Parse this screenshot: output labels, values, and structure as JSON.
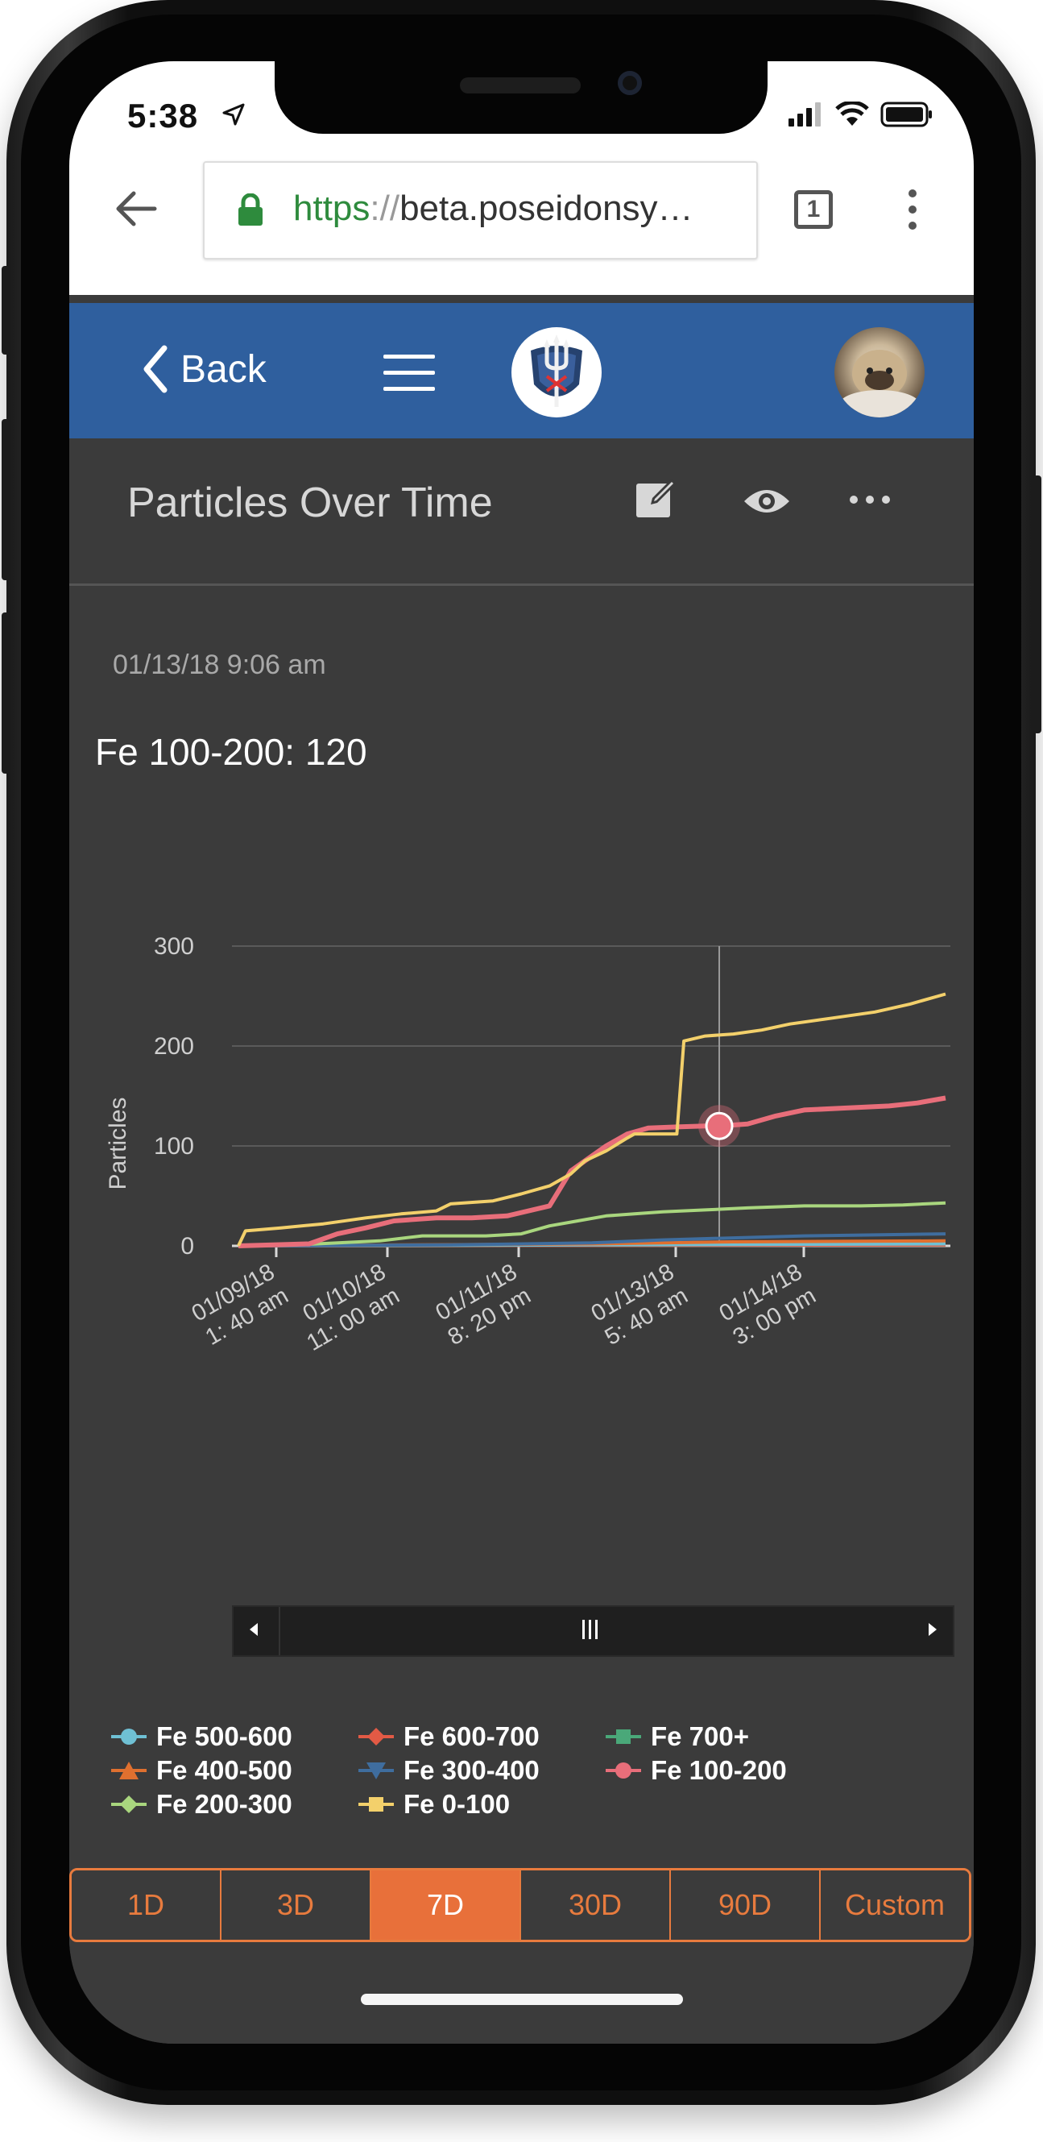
{
  "status": {
    "time": "5:38"
  },
  "browser": {
    "url_scheme": "https",
    "url_sep": "://",
    "url_rest": "beta.poseidonsy…",
    "tab_count": "1"
  },
  "appbar": {
    "back_label": "Back"
  },
  "page": {
    "title": "Particles Over Time",
    "timestamp": "01/13/18 9:06 am",
    "readout": "Fe 100-200: 120"
  },
  "chart_data": {
    "type": "line",
    "ylabel": "Particles",
    "ylim": [
      0,
      300
    ],
    "yticks": [
      "0",
      "100",
      "200",
      "300"
    ],
    "xticks": [
      {
        "l1": "01/09/18",
        "l2": "1: 40 am"
      },
      {
        "l1": "01/10/18",
        "l2": "11: 00 am"
      },
      {
        "l1": "01/11/18",
        "l2": "8: 20 pm"
      },
      {
        "l1": "01/13/18",
        "l2": "5: 40 am"
      },
      {
        "l1": "01/14/18",
        "l2": "3: 00 pm"
      }
    ],
    "xrange": [
      0,
      100
    ],
    "crosshair_x": 68,
    "highlight": {
      "series": "Fe 100-200",
      "x": 68,
      "y": 120
    },
    "series": [
      {
        "name": "Fe 0-100",
        "color": "#f3d06b",
        "points": [
          [
            0,
            0
          ],
          [
            1,
            15
          ],
          [
            6,
            18
          ],
          [
            12,
            22
          ],
          [
            18,
            28
          ],
          [
            23,
            32
          ],
          [
            28,
            35
          ],
          [
            30,
            42
          ],
          [
            36,
            45
          ],
          [
            40,
            52
          ],
          [
            44,
            60
          ],
          [
            47,
            72
          ],
          [
            49,
            85
          ],
          [
            52,
            95
          ],
          [
            55,
            108
          ],
          [
            56,
            112
          ],
          [
            58,
            112
          ],
          [
            62,
            112
          ],
          [
            63,
            205
          ],
          [
            66,
            210
          ],
          [
            70,
            212
          ],
          [
            74,
            216
          ],
          [
            78,
            222
          ],
          [
            84,
            228
          ],
          [
            90,
            234
          ],
          [
            95,
            242
          ],
          [
            100,
            252
          ]
        ]
      },
      {
        "name": "Fe 100-200",
        "color": "#e86e7a",
        "points": [
          [
            0,
            0
          ],
          [
            10,
            2
          ],
          [
            14,
            12
          ],
          [
            18,
            18
          ],
          [
            22,
            25
          ],
          [
            28,
            28
          ],
          [
            33,
            28
          ],
          [
            38,
            30
          ],
          [
            44,
            40
          ],
          [
            47,
            75
          ],
          [
            49,
            85
          ],
          [
            52,
            100
          ],
          [
            55,
            112
          ],
          [
            58,
            118
          ],
          [
            62,
            119
          ],
          [
            66,
            120
          ],
          [
            68,
            120
          ],
          [
            72,
            122
          ],
          [
            76,
            130
          ],
          [
            80,
            136
          ],
          [
            86,
            138
          ],
          [
            92,
            140
          ],
          [
            96,
            143
          ],
          [
            100,
            148
          ]
        ]
      },
      {
        "name": "Fe 200-300",
        "color": "#a9d67e",
        "points": [
          [
            0,
            0
          ],
          [
            8,
            1
          ],
          [
            20,
            5
          ],
          [
            26,
            10
          ],
          [
            35,
            10
          ],
          [
            40,
            12
          ],
          [
            44,
            20
          ],
          [
            48,
            25
          ],
          [
            52,
            30
          ],
          [
            56,
            32
          ],
          [
            60,
            34
          ],
          [
            66,
            36
          ],
          [
            72,
            38
          ],
          [
            80,
            40
          ],
          [
            88,
            40
          ],
          [
            94,
            41
          ],
          [
            100,
            43
          ]
        ]
      },
      {
        "name": "Fe 300-400",
        "color": "#3f6d9e",
        "points": [
          [
            0,
            0
          ],
          [
            30,
            1
          ],
          [
            50,
            3
          ],
          [
            60,
            6
          ],
          [
            70,
            8
          ],
          [
            80,
            10
          ],
          [
            90,
            11
          ],
          [
            100,
            12
          ]
        ]
      },
      {
        "name": "Fe 400-500",
        "color": "#e0702f",
        "points": [
          [
            0,
            0
          ],
          [
            50,
            2
          ],
          [
            70,
            4
          ],
          [
            100,
            5
          ]
        ]
      },
      {
        "name": "Fe 500-600",
        "color": "#6fc0d4",
        "points": [
          [
            0,
            0
          ],
          [
            50,
            1
          ],
          [
            100,
            2
          ]
        ]
      },
      {
        "name": "Fe 600-700",
        "color": "#e25a45",
        "points": [
          [
            0,
            0
          ],
          [
            100,
            1
          ]
        ]
      },
      {
        "name": "Fe 700+",
        "color": "#4aa879",
        "points": [
          [
            0,
            0
          ],
          [
            100,
            1
          ]
        ]
      }
    ]
  },
  "legend": [
    {
      "label": "Fe 500-600",
      "color": "#6fc0d4",
      "marker": "circle"
    },
    {
      "label": "Fe 600-700",
      "color": "#e25a45",
      "marker": "diamond"
    },
    {
      "label": "Fe 700+",
      "color": "#4aa879",
      "marker": "square"
    },
    {
      "label": "Fe 400-500",
      "color": "#e0702f",
      "marker": "triangle-up"
    },
    {
      "label": "Fe 300-400",
      "color": "#3f6d9e",
      "marker": "triangle-down"
    },
    {
      "label": "Fe 100-200",
      "color": "#e86e7a",
      "marker": "circle"
    },
    {
      "label": "Fe 200-300",
      "color": "#a9d67e",
      "marker": "diamond"
    },
    {
      "label": "Fe 0-100",
      "color": "#f3d06b",
      "marker": "square"
    }
  ],
  "ranges": [
    {
      "label": "1D",
      "active": false
    },
    {
      "label": "3D",
      "active": false
    },
    {
      "label": "7D",
      "active": true
    },
    {
      "label": "30D",
      "active": false
    },
    {
      "label": "90D",
      "active": false
    },
    {
      "label": "Custom",
      "active": false
    }
  ],
  "colors": {
    "accent": "#e8703a",
    "appbar": "#2f5f9e",
    "background": "#3b3b3b"
  }
}
